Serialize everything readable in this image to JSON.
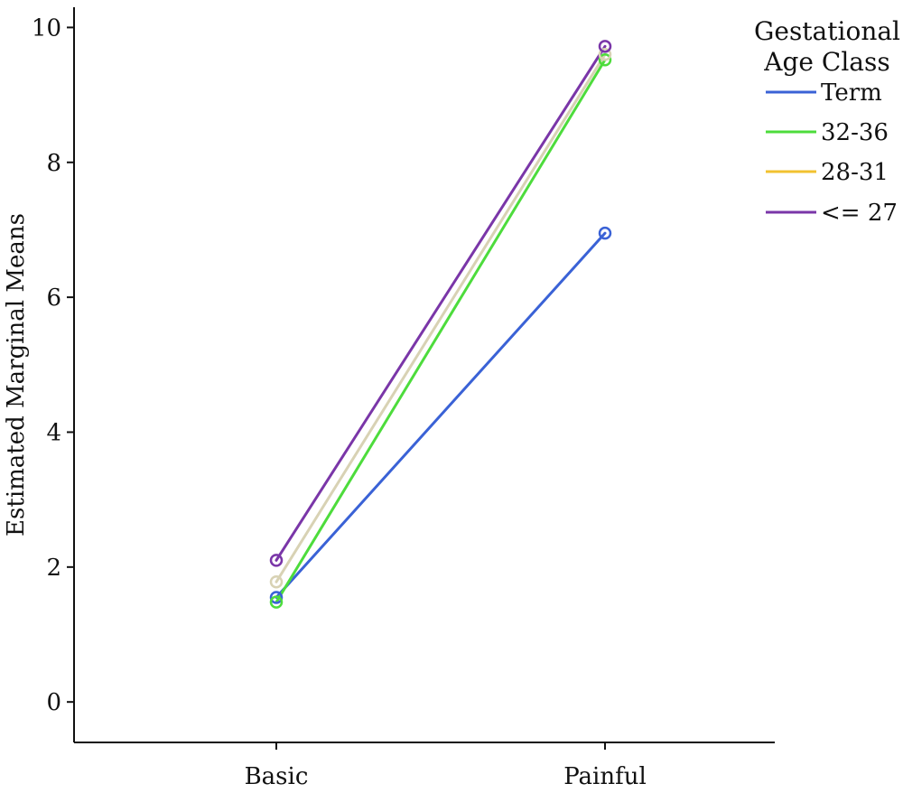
{
  "chart_data": {
    "type": "line",
    "title": "",
    "xlabel": "",
    "ylabel": "Estimated Marginal Means",
    "categories": [
      "Basic",
      "Painful"
    ],
    "ylim": [
      -0.6,
      10.3
    ],
    "yticks": [
      0,
      2,
      4,
      6,
      8,
      10
    ],
    "yticklabels": [
      "0",
      "2",
      "4",
      "6",
      "8",
      "10"
    ],
    "grid": false,
    "legend": {
      "title_lines": [
        "Gestational",
        "Age Class"
      ],
      "placement": "top-right"
    },
    "series": [
      {
        "name": "Term",
        "values": [
          1.55,
          6.95
        ],
        "color": "#3a62d6"
      },
      {
        "name": "32-36",
        "values": [
          1.48,
          9.52
        ],
        "color": "#4ddc3c"
      },
      {
        "name": "28-31",
        "values": [
          1.78,
          9.6
        ],
        "color": "#d8d2b4",
        "legend_color": "#f2c230"
      },
      {
        "name": "<= 27",
        "values": [
          2.1,
          9.72
        ],
        "color": "#7a36a8"
      }
    ]
  }
}
